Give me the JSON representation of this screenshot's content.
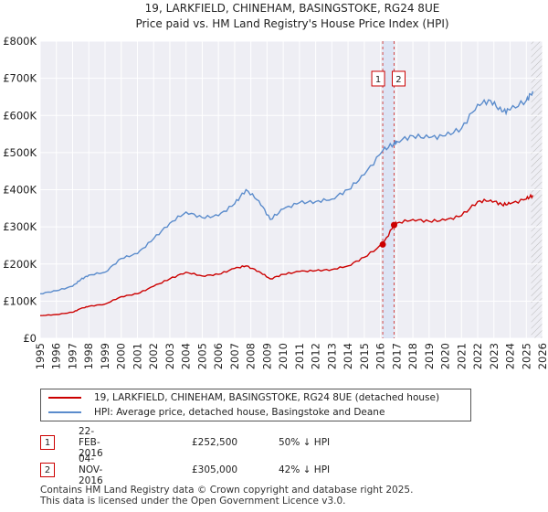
{
  "title_line1": "19, LARKFIELD, CHINEHAM, BASINGSTOKE, RG24 8UE",
  "title_line2": "Price paid vs. HM Land Registry's House Price Index (HPI)",
  "chart_data": {
    "type": "line",
    "title": "19, LARKFIELD, CHINEHAM, BASINGSTOKE, RG24 8UE — Price paid vs. HM Land Registry's House Price Index (HPI)",
    "xlim": [
      1995,
      2026
    ],
    "ylim": [
      0,
      800000
    ],
    "x_ticks": [
      "1995",
      "1996",
      "1997",
      "1998",
      "1999",
      "2000",
      "2001",
      "2002",
      "2003",
      "2004",
      "2005",
      "2006",
      "2007",
      "2008",
      "2009",
      "2010",
      "2011",
      "2012",
      "2013",
      "2014",
      "2015",
      "2016",
      "2017",
      "2018",
      "2019",
      "2020",
      "2021",
      "2022",
      "2023",
      "2024",
      "2025",
      "2026"
    ],
    "y_ticks": [
      {
        "value": 0,
        "label": "£0"
      },
      {
        "value": 100000,
        "label": "£100K"
      },
      {
        "value": 200000,
        "label": "£200K"
      },
      {
        "value": 300000,
        "label": "£300K"
      },
      {
        "value": 400000,
        "label": "£400K"
      },
      {
        "value": 500000,
        "label": "£500K"
      },
      {
        "value": 600000,
        "label": "£600K"
      },
      {
        "value": 700000,
        "label": "£700K"
      },
      {
        "value": 800000,
        "label": "£800K"
      }
    ],
    "series": [
      {
        "name": "19, LARKFIELD, CHINEHAM, BASINGSTOKE, RG24 8UE (detached house)",
        "color": "#cc0000",
        "x": [
          1995,
          1996,
          1997,
          1997.5,
          1998,
          1999,
          2000,
          2001,
          2002,
          2003,
          2004,
          2005,
          2006,
          2007,
          2007.7,
          2008.5,
          2009.2,
          2010,
          2011,
          2012,
          2013,
          2014,
          2015,
          2016.14,
          2016.84,
          2017,
          2018,
          2019,
          2020,
          2021,
          2022,
          2022.8,
          2023.5,
          2024,
          2025,
          2025.4
        ],
        "y": [
          61000,
          64000,
          70000,
          80000,
          86000,
          92000,
          112000,
          120000,
          140000,
          160000,
          178000,
          168000,
          172000,
          188000,
          195000,
          180000,
          160000,
          172000,
          180000,
          182000,
          185000,
          195000,
          218000,
          252500,
          305000,
          310000,
          320000,
          315000,
          318000,
          330000,
          368000,
          372000,
          360000,
          362000,
          375000,
          385000
        ]
      },
      {
        "name": "HPI: Average price, detached house, Basingstoke and Deane",
        "color": "#5b8ccc",
        "x": [
          1995,
          1996,
          1997,
          1997.5,
          1998,
          1999,
          2000,
          2001,
          2002,
          2003,
          2004,
          2005,
          2006,
          2007,
          2007.7,
          2008.5,
          2009.2,
          2010,
          2011,
          2012,
          2013,
          2014,
          2015,
          2016.14,
          2016.84,
          2017,
          2018,
          2019,
          2020,
          2021,
          2022,
          2022.8,
          2023.5,
          2024,
          2025,
          2025.4
        ],
        "y": [
          120000,
          128000,
          140000,
          158000,
          170000,
          178000,
          215000,
          228000,
          268000,
          310000,
          340000,
          325000,
          330000,
          362000,
          400000,
          370000,
          320000,
          348000,
          365000,
          368000,
          375000,
          400000,
          440000,
          505000,
          525000,
          530000,
          545000,
          540000,
          545000,
          565000,
          630000,
          640000,
          610000,
          615000,
          640000,
          665000
        ]
      }
    ],
    "vertical_markers": [
      {
        "label": "1",
        "x": 2016.14
      },
      {
        "label": "2",
        "x": 2016.84
      }
    ],
    "points": [
      {
        "label": "1",
        "x": 2016.14,
        "y": 252500
      },
      {
        "label": "2",
        "x": 2016.84,
        "y": 305000
      }
    ],
    "grid": true,
    "legend_position": "below"
  },
  "legend": {
    "items": [
      {
        "label": "19, LARKFIELD, CHINEHAM, BASINGSTOKE, RG24 8UE (detached house)",
        "color": "#cc0000"
      },
      {
        "label": "HPI: Average price, detached house, Basingstoke and Deane",
        "color": "#5b8ccc"
      }
    ]
  },
  "transactions": [
    {
      "num": "1",
      "date": "22-FEB-2016",
      "price": "£252,500",
      "hpi": "50% ↓ HPI"
    },
    {
      "num": "2",
      "date": "04-NOV-2016",
      "price": "£305,000",
      "hpi": "42% ↓ HPI"
    }
  ],
  "footer": {
    "line1": "Contains HM Land Registry data © Crown copyright and database right 2025.",
    "line2": "This data is licensed under the Open Government Licence v3.0."
  }
}
